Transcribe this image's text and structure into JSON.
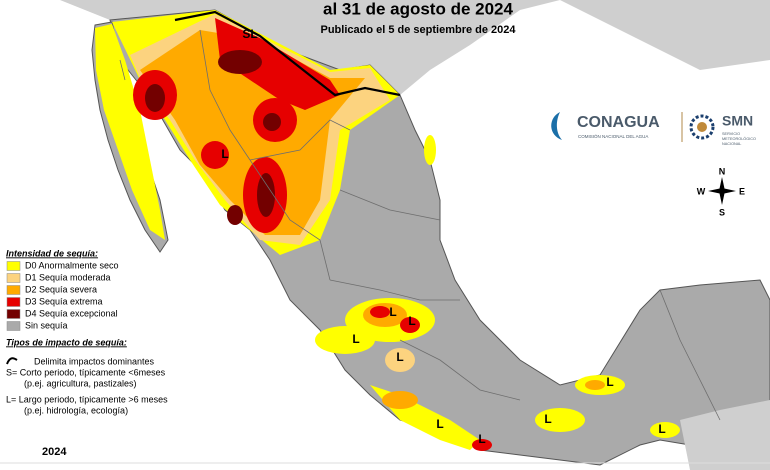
{
  "header": {
    "title": "al 31 de agosto de 2024",
    "subtitle": "Publicado el 5 de septiembre de 2024"
  },
  "logos": {
    "conagua": "CONAGUA",
    "conagua_sub": "COMISIÓN NACIONAL DEL AGUA",
    "smn": "SMN",
    "smn_sub_1": "SERVICIO",
    "smn_sub_2": "METEOROLÓGICO",
    "smn_sub_3": "NACIONAL"
  },
  "compass": {
    "n": "N",
    "s": "S",
    "e": "E",
    "w": "W"
  },
  "map": {
    "labels": [
      "SL",
      "L",
      "L",
      "L",
      "L",
      "L",
      "L",
      "L",
      "L",
      "L",
      "L"
    ]
  },
  "legend": {
    "intensity_title": "Intensidad de sequía:",
    "intensity": [
      {
        "label": "D0 Anormalmente seco",
        "color": "#ffff00"
      },
      {
        "label": "D1 Sequía moderada",
        "color": "#fcd37f"
      },
      {
        "label": "D2 Sequía severa",
        "color": "#ffaa00"
      },
      {
        "label": "D3 Sequía extrema",
        "color": "#e60000"
      },
      {
        "label": "D4 Sequía excepcional",
        "color": "#730000"
      },
      {
        "label": "Sin sequía",
        "color": "#aaaaaa"
      }
    ],
    "impact_title": "Tipos de impacto de sequía:",
    "impact_line": "Delimita impactos dominantes",
    "impact_s": "S= Corto periodo, típicamente <6meses",
    "impact_s_eg": "(p.ej. agricultura, pastizales)",
    "impact_l": "L= Largo periodo, típicamente >6 meses",
    "impact_l_eg": "(p.ej. hidrología, ecología)"
  },
  "footer": {
    "year": "2024"
  }
}
